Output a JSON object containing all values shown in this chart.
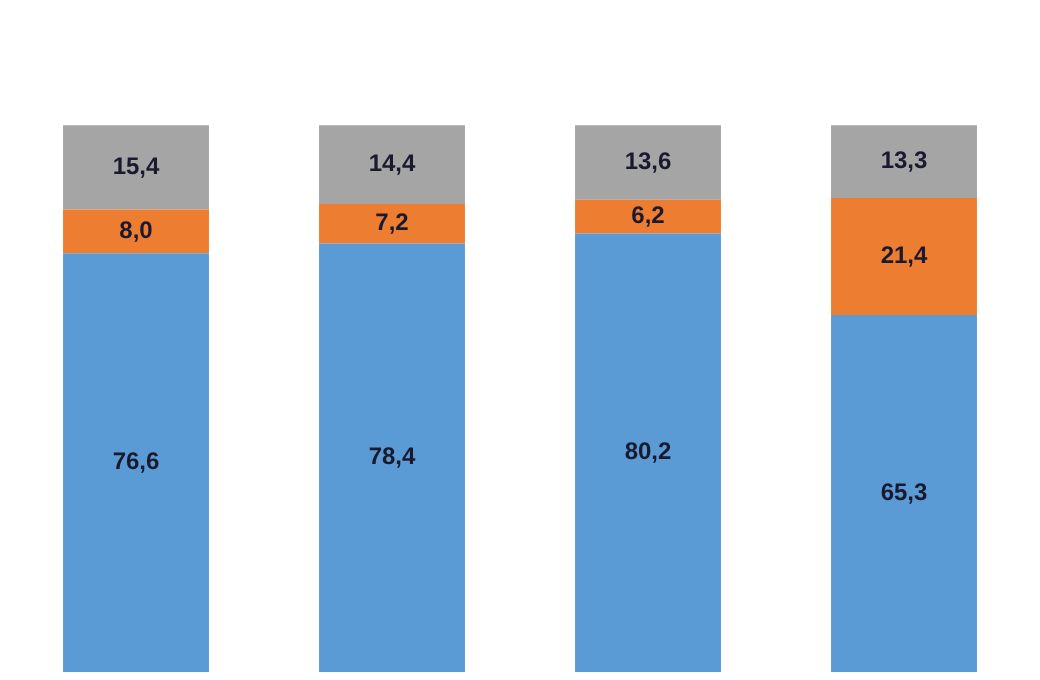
{
  "chart_data": {
    "type": "bar",
    "stacked": true,
    "categories": [
      null,
      null,
      null,
      null
    ],
    "series": [
      {
        "color": "#5b9bd5",
        "values": [
          76.6,
          78.4,
          80.2,
          65.3
        ],
        "value_labels": [
          "76,6",
          "78,4",
          "80,2",
          "65,3"
        ]
      },
      {
        "color": "#ed7d31",
        "values": [
          8.0,
          7.2,
          6.2,
          21.4
        ],
        "value_labels": [
          "8,0",
          "7,2",
          "6,2",
          "21,4"
        ]
      },
      {
        "color": "#a5a5a5",
        "values": [
          15.4,
          14.4,
          13.6,
          13.3
        ],
        "value_labels": [
          "15,4",
          "14,4",
          "13,6",
          "13,3"
        ]
      }
    ],
    "legend": false
  }
}
